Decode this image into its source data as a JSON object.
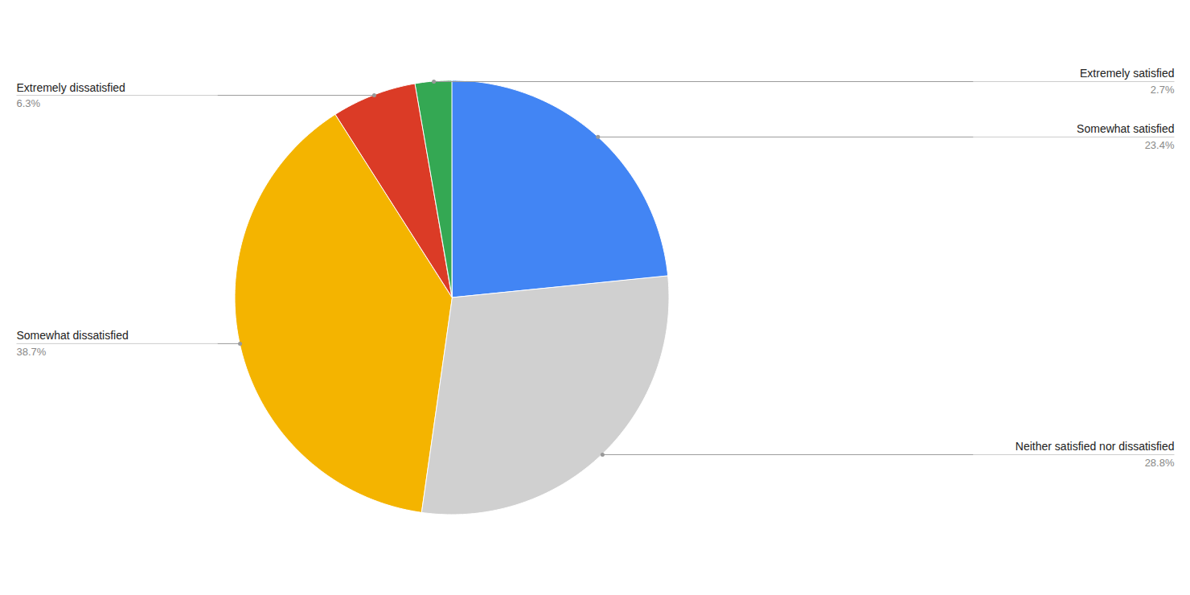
{
  "chart_data": {
    "type": "pie",
    "categories": [
      "Somewhat satisfied",
      "Neither satisfied nor dissatisfied",
      "Somewhat dissatisfied",
      "Extremely dissatisfied",
      "Extremely satisfied"
    ],
    "values": [
      23.4,
      28.8,
      38.7,
      6.3,
      2.7
    ],
    "value_labels": [
      "23.4%",
      "28.8%",
      "38.7%",
      "6.3%",
      "2.7%"
    ],
    "colors": [
      "#4285f4",
      "#d0d0d0",
      "#f4b400",
      "#db3b26",
      "#34a853"
    ],
    "data_labels": true
  }
}
